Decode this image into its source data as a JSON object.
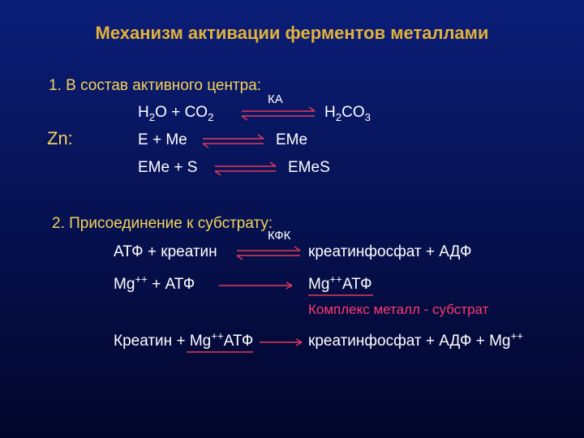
{
  "background": {
    "gradient_top": "#0b1e78",
    "gradient_bottom": "#02052a"
  },
  "colors": {
    "title": "#e2b13a",
    "section": "#f4d35a",
    "body": "#ffffff",
    "highlight": "#ff3a6a",
    "arrow": "#e53a5a",
    "arrow_single": "#e53a5a"
  },
  "fontsize": {
    "title": 22,
    "section": 19,
    "body": 19,
    "zn": 22,
    "small": 15,
    "highlight": 17
  },
  "title": "Механизм активации ферментов металлами",
  "section1": {
    "heading": "1. В состав активного центра:",
    "zn_label": "Zn:",
    "line1": {
      "left": "H",
      "left2": "O +  CO",
      "right": "H",
      "right2": "CO",
      "catalyst": "КА"
    },
    "line2": {
      "left": "E + Me",
      "right": "EMe"
    },
    "line3": {
      "left": "EMe + S",
      "right": "EMeS"
    }
  },
  "section2": {
    "heading": "2. Присоединение к субстрату:",
    "catalyst": "КФК",
    "line1": {
      "left": "АТФ  + креатин",
      "right": "креатинфосфат  + АДФ"
    },
    "line2": {
      "left": "Mg",
      "left2": " + АТФ",
      "right": "Mg",
      "right2": "АТФ"
    },
    "highlight": "Комплекс металл - субстрат",
    "line3": {
      "left": "Креатин + Mg",
      "left2": "АТФ",
      "right": "креатинфосфат + АДФ + Mg"
    }
  }
}
